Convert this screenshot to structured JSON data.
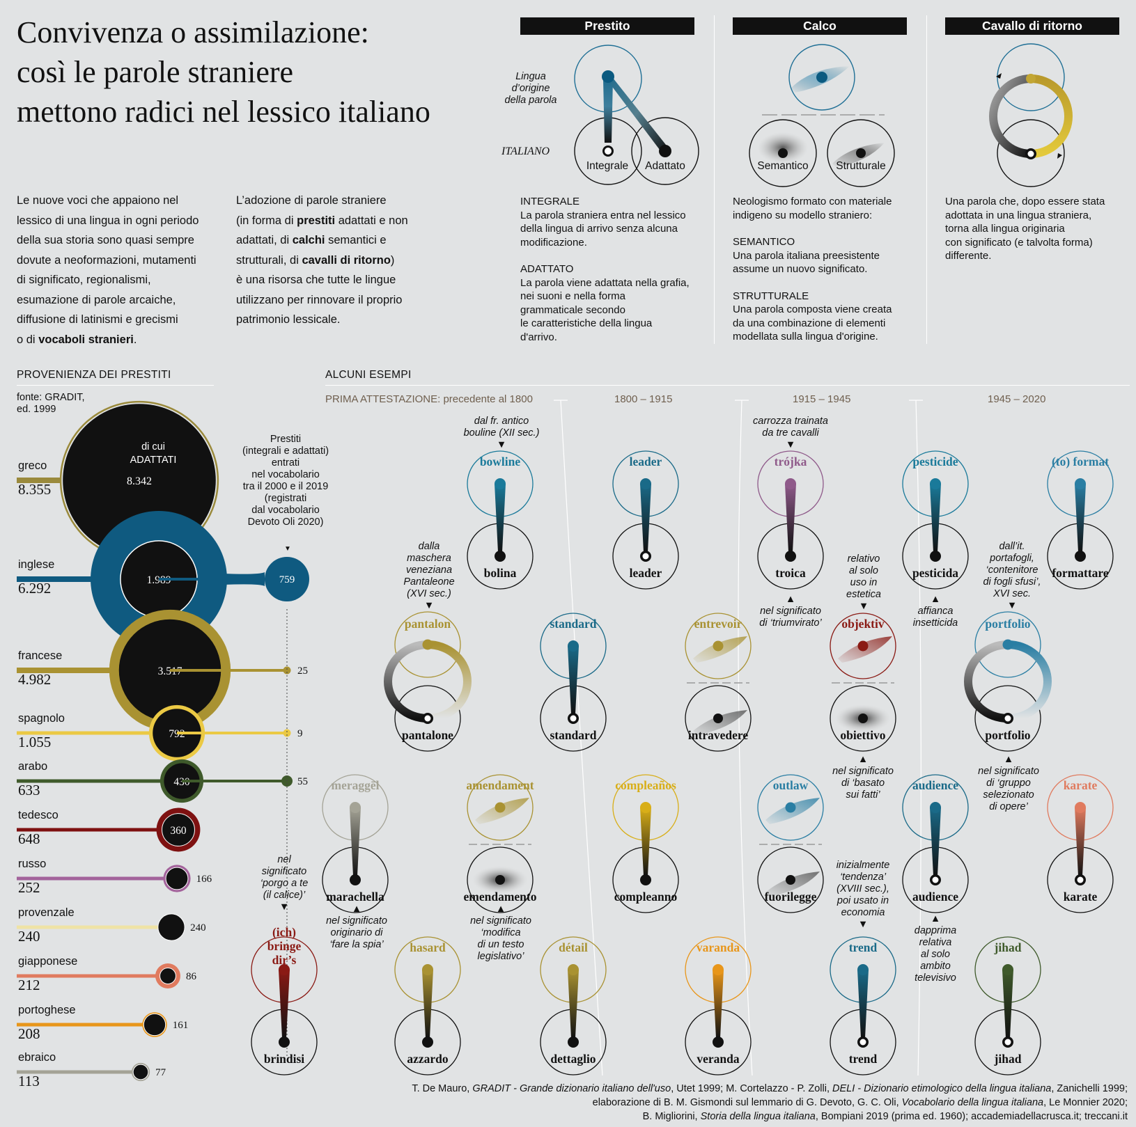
{
  "title": [
    "Convivenza o assimilazione:",
    "così le parole straniere",
    "mettono radici nel lessico italiano"
  ],
  "intro1": [
    "Le nuove voci che appaiono nel",
    "lessico di una lingua in ogni periodo",
    "della sua storia sono quasi sempre",
    "dovute a neoformazioni, mutamenti",
    "di significato, regionalismi,",
    "esumazione di parole arcaiche,",
    "diffusione di latinismi e grecismi",
    "o di ",
    "vocaboli stranieri",
    "."
  ],
  "intro2": [
    "L’adozione di parole straniere",
    "(in forma di ",
    "prestiti",
    " adattati e non",
    "adattati, di ",
    "calchi",
    " semantici e",
    "strutturali, di ",
    "cavalli di ritorno",
    ")",
    "è una risorsa che tutte le lingue",
    "utilizzano per rinnovare il proprio",
    "patrimonio lessicale."
  ],
  "types": {
    "prestito": {
      "title": "Prestito",
      "lingua_label": [
        "Lingua",
        "d’origine",
        "della parola"
      ],
      "italiano_label": "ITALIANO",
      "integrale_label": "Integrale",
      "adattato_label": "Adattato",
      "desc": [
        "INTEGRALE",
        "La parola straniera entra nel lessico",
        "della lingua di arrivo senza alcuna",
        "modificazione.",
        "ADATTATO",
        "La parola viene adattata nella grafia,",
        "nei suoni e nella forma",
        "grammaticale secondo",
        "le caratteristiche della lingua",
        "d'arrivo."
      ]
    },
    "calco": {
      "title": "Calco",
      "semantico_label": "Semantico",
      "strutturale_label": "Strutturale",
      "desc": [
        "Neologismo formato con materiale",
        "indigeno su modello straniero:",
        "SEMANTICO",
        "Una parola italiana preesistente",
        "assume un nuovo significato.",
        "STRUTTURALE",
        "Una parola composta viene creata",
        "da una combinazione di elementi",
        "modellata sulla lingua d'origine."
      ]
    },
    "cavallo": {
      "title": "Cavallo di ritorno",
      "desc": [
        "Una parola che, dopo essere stata",
        "adottata in una lingua straniera,",
        "torna alla lingua originaria",
        "con significato (e talvolta forma)",
        "differente."
      ]
    }
  },
  "provenienza": {
    "heading": "PROVENIENZA DEI PRESTITI",
    "source": [
      "fonte: GRADIT,",
      "ed. 1999"
    ],
    "di_cui": [
      "di cui",
      "ADATTATI"
    ],
    "recent_label": [
      "Prestiti",
      "(integrali e adattati)",
      "entrati",
      "nel vocabolario",
      "tra il 2000 e il 2019",
      "(registrati",
      "dal vocabolario",
      "Devoto Oli 2020)"
    ],
    "languages": [
      {
        "name": "greco",
        "total": "8.355",
        "adattati": "8.342",
        "recent": "",
        "color": "#9a8a3c"
      },
      {
        "name": "inglese",
        "total": "6.292",
        "adattati": "1.989",
        "recent": "759",
        "color": "#0f5a80"
      },
      {
        "name": "francese",
        "total": "4.982",
        "adattati": "3.517",
        "recent": "25",
        "color": "#a99232"
      },
      {
        "name": "spagnolo",
        "total": "1.055",
        "adattati": "792",
        "recent": "9",
        "color": "#ebc944"
      },
      {
        "name": "arabo",
        "total": "633",
        "adattati": "430",
        "recent": "55",
        "color": "#3f5a2b"
      },
      {
        "name": "tedesco",
        "total": "648",
        "adattati": "360",
        "recent": "",
        "color": "#7e1111"
      },
      {
        "name": "russo",
        "total": "252",
        "adattati": "166",
        "recent": "",
        "color": "#a3639b"
      },
      {
        "name": "provenzale",
        "total": "240",
        "adattati": "240",
        "recent": "",
        "color": "#efe3a5"
      },
      {
        "name": "giapponese",
        "total": "212",
        "adattati": "86",
        "recent": "",
        "color": "#e07b5f"
      },
      {
        "name": "portoghese",
        "total": "208",
        "adattati": "161",
        "recent": "",
        "color": "#e8961a"
      },
      {
        "name": "ebraico",
        "total": "113",
        "adattati": "77",
        "recent": "",
        "color": "#a4a396"
      }
    ]
  },
  "esempi": {
    "heading": "ALCUNI ESEMPI",
    "periods": [
      "PRIMA ATTESTAZIONE: precedente al 1800",
      "1800 – 1915",
      "1915 – 1945",
      "1945 – 2020"
    ],
    "words": [
      {
        "foreign": "bowline",
        "italian": "bolina",
        "kind": "adattato",
        "color": "#1a7a9a"
      },
      {
        "foreign": "leader",
        "italian": "leader",
        "kind": "integrale",
        "color": "#1a6a88"
      },
      {
        "foreign": "trójka",
        "italian": "troica",
        "kind": "adattato",
        "color": "#8f5a8a"
      },
      {
        "foreign": "pesticide",
        "italian": "pesticida",
        "kind": "adattato",
        "color": "#1a7a9a"
      },
      {
        "foreign": "(to) format",
        "italian": "formattare",
        "kind": "adattato",
        "color": "#2a7ea3"
      },
      {
        "foreign": "pantalon",
        "italian": "pantalone",
        "kind": "cavallo",
        "color": "#a99232"
      },
      {
        "foreign": "standard",
        "italian": "standard",
        "kind": "integrale",
        "color": "#1a6a88"
      },
      {
        "foreign": "entrevoir",
        "italian": "intravedere",
        "kind": "strutturale",
        "color": "#a99232"
      },
      {
        "foreign": "objektiv",
        "italian": "obiettivo",
        "kind": "semantico",
        "color": "#8a1a14"
      },
      {
        "foreign": "portfolio",
        "italian": "portfolio",
        "kind": "cavallo",
        "color": "#2a7ea3"
      },
      {
        "foreign": "meraggēl",
        "italian": "marachella",
        "kind": "adattato",
        "color": "#a4a396"
      },
      {
        "foreign": "amendament",
        "italian": "emendamento",
        "kind": "semantico",
        "color": "#a99232"
      },
      {
        "foreign": "compleaños",
        "italian": "compleanno",
        "kind": "adattato",
        "color": "#d8ae18"
      },
      {
        "foreign": "outlaw",
        "italian": "fuorilegge",
        "kind": "strutturale",
        "color": "#2a7ea3"
      },
      {
        "foreign": "audience",
        "italian": "audience",
        "kind": "integrale",
        "color": "#1a6a88"
      },
      {
        "foreign": "karate",
        "italian": "karate",
        "kind": "integrale",
        "color": "#e07b5f"
      },
      {
        "foreign": "(ich) bringe dir’s",
        "italian": "brindisi",
        "kind": "adattato",
        "color": "#8a1a14"
      },
      {
        "foreign": "hasard",
        "italian": "azzardo",
        "kind": "adattato",
        "color": "#a99232"
      },
      {
        "foreign": "détail",
        "italian": "dettaglio",
        "kind": "adattato",
        "color": "#a99232"
      },
      {
        "foreign": "varanda",
        "italian": "veranda",
        "kind": "adattato",
        "color": "#e8961a"
      },
      {
        "foreign": "trend",
        "italian": "trend",
        "kind": "integrale",
        "color": "#1a6a88"
      },
      {
        "foreign": "jihad",
        "italian": "jihad",
        "kind": "integrale",
        "color": "#3f5a2b"
      }
    ],
    "notes": {
      "bowline": [
        "dal fr. antico",
        "bouline (XII sec.)"
      ],
      "trojka": [
        "carrozza trainata",
        "da tre cavalli"
      ],
      "pantalon": [
        "dalla",
        "maschera",
        "veneziana",
        "Pantaleone",
        "(XVI sec.)"
      ],
      "troica": [
        "nel significato",
        "di ‘triumvirato’"
      ],
      "objektiv": [
        "relativo",
        "al solo",
        "uso in",
        "estetica"
      ],
      "pesticida": [
        "affianca",
        "insetticida"
      ],
      "portfolio": [
        "dall’it.",
        "portafogli,",
        "‘contenitore",
        "di fogli sfusi’,",
        "XVI sec."
      ],
      "obiettivo": [
        "nel significato",
        "di ‘basato",
        "sui fatti’"
      ],
      "portfolio_it": [
        "nel significato",
        "di ‘gruppo",
        "selezionato",
        "di opere’"
      ],
      "brindisi": [
        "nel",
        "significato",
        "‘porgo a te",
        "(il calice)’"
      ],
      "marachella": [
        "nel significato",
        "originario di",
        "‘fare la spia’"
      ],
      "emendamento": [
        "nel significato",
        "‘modifica",
        "di un testo",
        "legislativo’"
      ],
      "trend": [
        "inizialmente",
        "‘tendenza’",
        "(XVIII sec.),",
        "poi usato in",
        "economia"
      ],
      "audience": [
        "dapprima",
        "relativa",
        "al solo",
        "ambito",
        "televisivo"
      ]
    }
  },
  "sources": {
    "line1": [
      "T. De Mauro, ",
      "GRADIT - Grande dizionario italiano dell'uso",
      ", Utet 1999; M. Cortelazzo - P. Zolli, ",
      "DELI - Dizionario etimologico della lingua italiana",
      ", Zanichelli 1999;"
    ],
    "line2": [
      "elaborazione di B. M. Gismondi sul lemmario di G. Devoto, G. C. Oli, ",
      "Vocabolario della lingua italiana",
      ", Le Monnier 2020;"
    ],
    "line3": [
      "B. Migliorini, ",
      "Storia della lingua italiana",
      ", Bompiani 2019 (prima ed. 1960); accademiadellacrusca.it; treccani.it"
    ]
  }
}
